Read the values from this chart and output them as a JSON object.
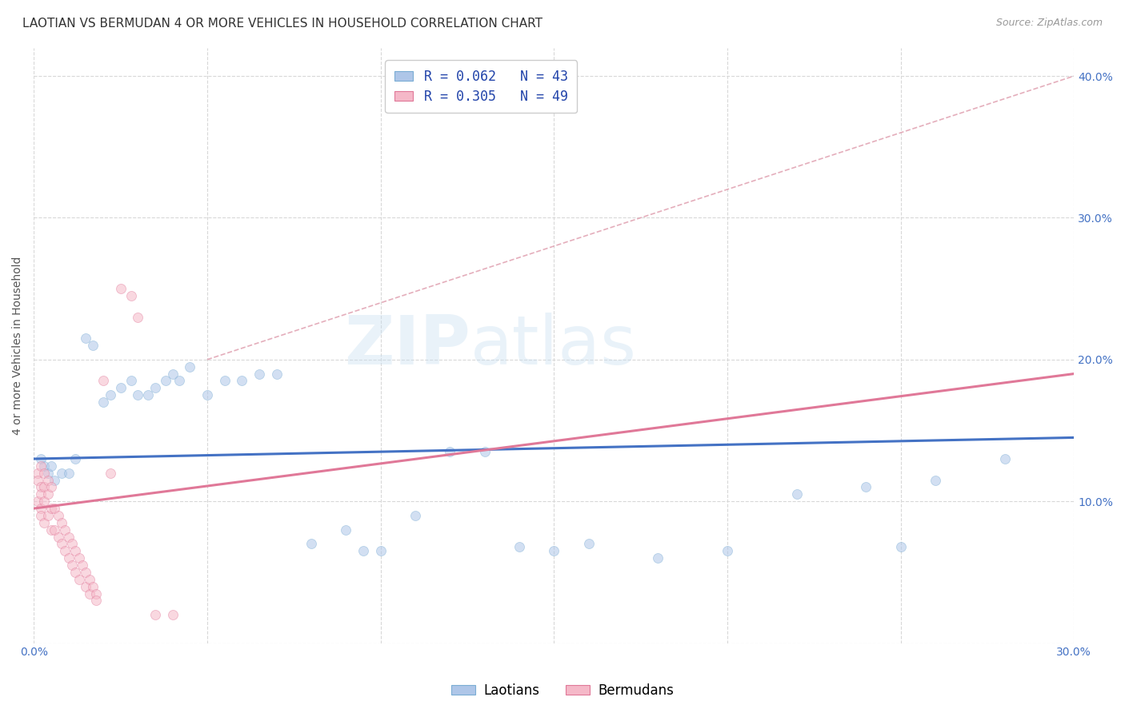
{
  "title": "LAOTIAN VS BERMUDAN 4 OR MORE VEHICLES IN HOUSEHOLD CORRELATION CHART",
  "source": "Source: ZipAtlas.com",
  "tick_color": "#4472c4",
  "ylabel": "4 or more Vehicles in Household",
  "watermark_part1": "ZIP",
  "watermark_part2": "atlas",
  "xlim": [
    0.0,
    0.3
  ],
  "ylim": [
    0.0,
    0.42
  ],
  "x_ticks": [
    0.0,
    0.05,
    0.1,
    0.15,
    0.2,
    0.25,
    0.3
  ],
  "x_tick_labels": [
    "0.0%",
    "",
    "",
    "",
    "",
    "",
    "30.0%"
  ],
  "y_ticks": [
    0.0,
    0.1,
    0.2,
    0.3,
    0.4
  ],
  "y_tick_labels_right": [
    "",
    "10.0%",
    "20.0%",
    "30.0%",
    "40.0%"
  ],
  "legend_entry1": "R = 0.062   N = 43",
  "legend_entry2": "R = 0.305   N = 49",
  "laotian_color": "#aec6e8",
  "laotian_edge": "#7aadd4",
  "bermudan_color": "#f5b8c8",
  "bermudan_edge": "#e07898",
  "line_laotian_color": "#4472c4",
  "line_bermudan_color": "#e07898",
  "diag_color": "#e0a0b0",
  "laotian_x": [
    0.002,
    0.003,
    0.004,
    0.005,
    0.006,
    0.008,
    0.01,
    0.012,
    0.015,
    0.017,
    0.02,
    0.022,
    0.025,
    0.028,
    0.03,
    0.033,
    0.035,
    0.038,
    0.04,
    0.042,
    0.045,
    0.05,
    0.055,
    0.06,
    0.065,
    0.07,
    0.08,
    0.09,
    0.1,
    0.11,
    0.12,
    0.13,
    0.15,
    0.16,
    0.18,
    0.22,
    0.24,
    0.26,
    0.28,
    0.095,
    0.14,
    0.2,
    0.25
  ],
  "laotian_y": [
    0.13,
    0.125,
    0.12,
    0.125,
    0.115,
    0.12,
    0.12,
    0.13,
    0.215,
    0.21,
    0.17,
    0.175,
    0.18,
    0.185,
    0.175,
    0.175,
    0.18,
    0.185,
    0.19,
    0.185,
    0.195,
    0.175,
    0.185,
    0.185,
    0.19,
    0.19,
    0.07,
    0.08,
    0.065,
    0.09,
    0.135,
    0.135,
    0.065,
    0.07,
    0.06,
    0.105,
    0.11,
    0.115,
    0.13,
    0.065,
    0.068,
    0.065,
    0.068
  ],
  "bermudan_x": [
    0.001,
    0.001,
    0.001,
    0.002,
    0.002,
    0.002,
    0.002,
    0.002,
    0.003,
    0.003,
    0.003,
    0.003,
    0.004,
    0.004,
    0.004,
    0.005,
    0.005,
    0.005,
    0.006,
    0.006,
    0.007,
    0.007,
    0.008,
    0.008,
    0.009,
    0.009,
    0.01,
    0.01,
    0.011,
    0.011,
    0.012,
    0.012,
    0.013,
    0.013,
    0.014,
    0.015,
    0.015,
    0.016,
    0.016,
    0.017,
    0.018,
    0.018,
    0.02,
    0.022,
    0.025,
    0.028,
    0.03,
    0.035,
    0.04
  ],
  "bermudan_y": [
    0.12,
    0.115,
    0.1,
    0.125,
    0.11,
    0.105,
    0.095,
    0.09,
    0.12,
    0.11,
    0.1,
    0.085,
    0.115,
    0.105,
    0.09,
    0.11,
    0.095,
    0.08,
    0.095,
    0.08,
    0.09,
    0.075,
    0.085,
    0.07,
    0.08,
    0.065,
    0.075,
    0.06,
    0.07,
    0.055,
    0.065,
    0.05,
    0.06,
    0.045,
    0.055,
    0.05,
    0.04,
    0.045,
    0.035,
    0.04,
    0.035,
    0.03,
    0.185,
    0.12,
    0.25,
    0.245,
    0.23,
    0.02,
    0.02
  ],
  "background_color": "#ffffff",
  "grid_color": "#d8d8d8",
  "title_fontsize": 11,
  "axis_label_fontsize": 10,
  "tick_fontsize": 10,
  "marker_size": 75,
  "marker_alpha": 0.55,
  "line_laotian_y0": 0.13,
  "line_laotian_y1": 0.145,
  "line_bermudan_y0": 0.095,
  "line_bermudan_y1": 0.19
}
